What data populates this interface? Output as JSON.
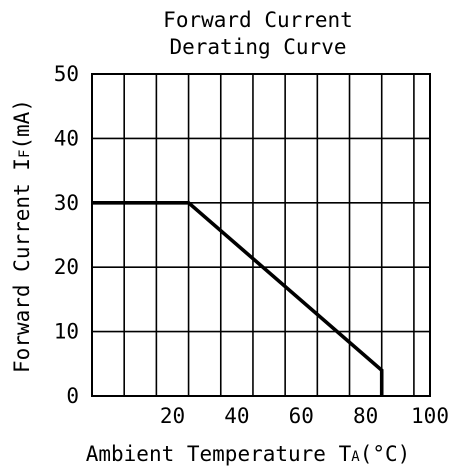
{
  "chart_data": {
    "type": "line",
    "title": [
      "Forward Current",
      "Derating Curve"
    ],
    "xlabel": {
      "main": "Ambient Temperature T",
      "sub": "A",
      "unit": "(°C)"
    },
    "ylabel": {
      "main": "Forward Current I",
      "sub": "F",
      "unit": "(mA)"
    },
    "xlim": [
      -5,
      100
    ],
    "ylim": [
      0,
      50
    ],
    "x_gridlines": [
      5,
      15,
      25,
      35,
      45,
      55,
      65,
      75,
      85,
      95
    ],
    "y_gridlines": [
      10,
      20,
      30,
      40
    ],
    "x_ticks": [
      20,
      40,
      60,
      80,
      100
    ],
    "y_ticks": [
      0,
      10,
      20,
      30,
      40,
      50
    ],
    "grid": true,
    "legend": "none",
    "series": [
      {
        "x": [
          -5,
          25,
          85,
          85
        ],
        "y": [
          30,
          30,
          4,
          0
        ],
        "color": "#000000"
      }
    ]
  }
}
